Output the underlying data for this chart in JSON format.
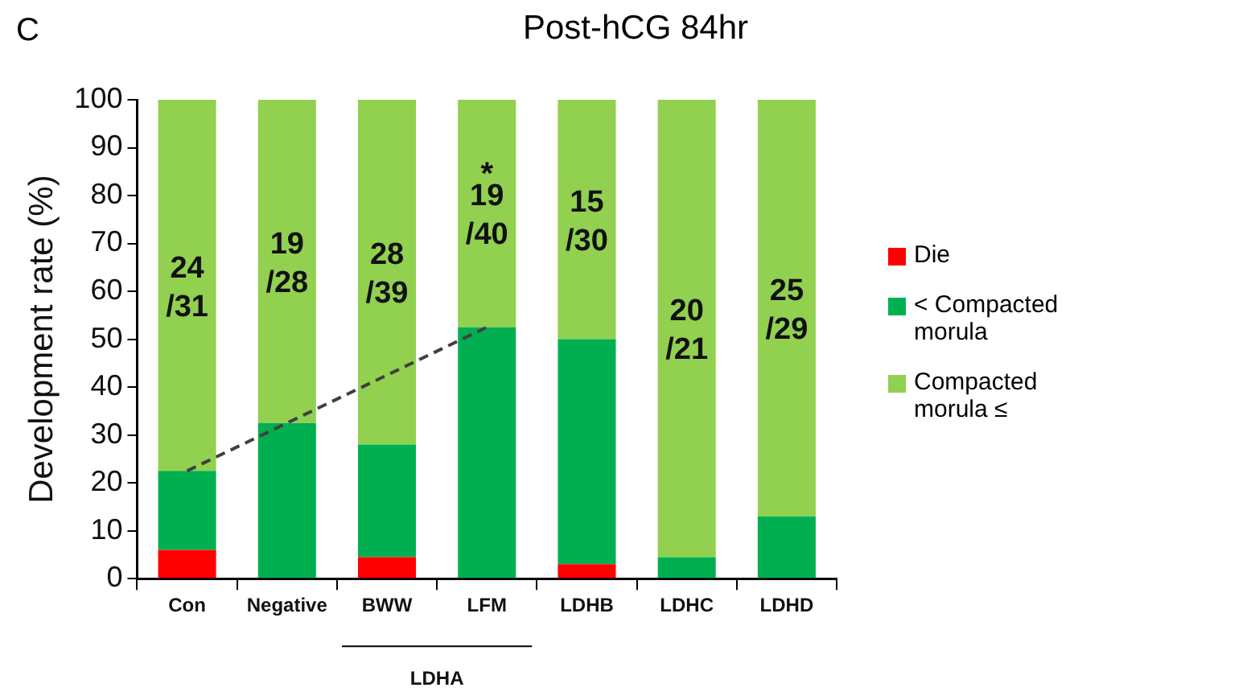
{
  "chart_data": {
    "type": "bar",
    "title": "Post-hCG 84hr",
    "ylabel": "Development rate (%)",
    "stacked": true,
    "categories": [
      "Con",
      "Negative",
      "BWW",
      "LFM",
      "LDHB",
      "LDHC",
      "LDHD"
    ],
    "series": [
      {
        "name": "Die",
        "color": "#ff0000",
        "values": [
          6,
          0,
          4.5,
          0,
          3,
          0,
          0
        ]
      },
      {
        "name": "< Compacted morula",
        "color": "#00b050",
        "values": [
          16.5,
          32.5,
          23.5,
          52.5,
          47,
          4.5,
          13
        ]
      },
      {
        "name": "Compacted morula ≤",
        "color": "#92d050",
        "values": [
          77.5,
          67.5,
          72,
          47.5,
          50,
          95.5,
          87
        ]
      },
      {
        "type": "line",
        "color": "#404040",
        "line_style": "dashed",
        "marker": "none",
        "values": [
          22.5,
          null,
          null,
          52.5,
          null,
          null,
          null
        ]
      }
    ],
    "ylim": [
      0,
      100
    ],
    "yticks": [
      0,
      10,
      20,
      30,
      40,
      50,
      60,
      70,
      80,
      90,
      100
    ],
    "grid": false,
    "legend": "right",
    "annotations": [
      "C",
      "*",
      "24\n/31",
      "19\n/28",
      "28\n/39",
      "19\n/40",
      "15\n/30",
      "20\n/21",
      "25\n/29",
      "LDHA"
    ]
  }
}
